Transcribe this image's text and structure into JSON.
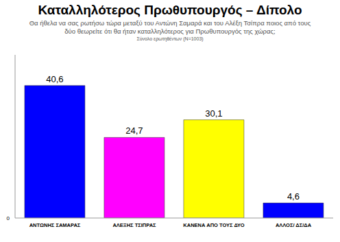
{
  "chart_data": {
    "type": "bar",
    "title": "Καταλληλότερος  Πρωθυπουργός – Δίπολο",
    "subtitle": "Θα ήθελα να σας ρωτήσω τώρα μεταξύ του Αντώνη Σαμαρά  και του Αλέξη Τσίπρα  ποιος από τους δύο θεωρείτε ότι θα ήταν καταλληλότερος για Πρωθυπουργός της χώρας;",
    "note": "Σύνολο ερωτηθέντων (N=1003)",
    "categories": [
      "ΑΝΤΩΝΗΣ ΣΑΜΑΡΑΣ",
      "ΑΛΕΞΗΣ ΤΣΙΠΡΑΣ",
      "ΚΑΝΕΝΑ ΑΠΟ ΤΟΥΣ ΔΥΟ",
      "ΑΛΛΟΣ/ ΔΣ/ΔΑ"
    ],
    "values": [
      40.6,
      24.7,
      30.1,
      4.6
    ],
    "value_labels": [
      "40,6",
      "24,7",
      "30,1",
      "4,6"
    ],
    "colors": [
      "#0000ff",
      "#ff00ff",
      "#ffff00",
      "#0000ff"
    ],
    "ylim": [
      0,
      50
    ],
    "yticks": [
      0
    ],
    "data_labels": true,
    "grid": false
  }
}
